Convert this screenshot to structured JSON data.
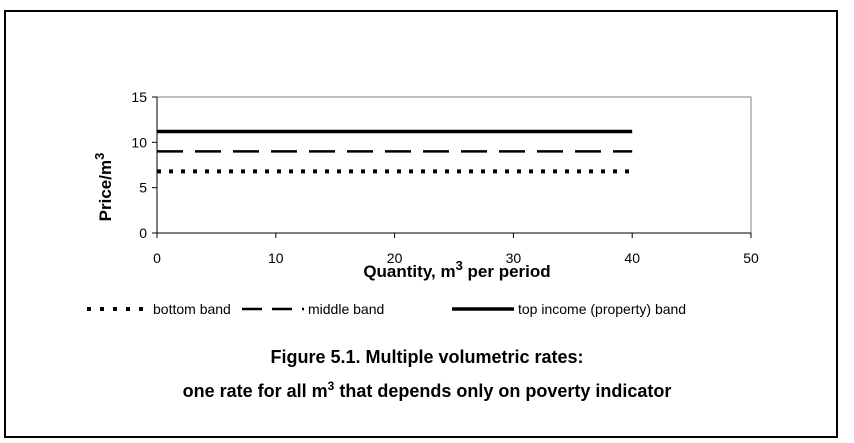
{
  "chart_data": {
    "type": "line",
    "xlabel_prefix": "Quantity, m",
    "xlabel_sup": "3",
    "xlabel_suffix": " per period",
    "ylabel_prefix": "Price/m",
    "ylabel_sup": "3",
    "xlim": [
      0,
      50
    ],
    "ylim": [
      0,
      15
    ],
    "x_ticks": [
      "0",
      "10",
      "20",
      "30",
      "40",
      "50"
    ],
    "y_ticks": [
      "0",
      "5",
      "10",
      "15"
    ],
    "grid": false,
    "legend_position": "bottom",
    "series": [
      {
        "name": "bottom band",
        "x": [
          0,
          40
        ],
        "y": [
          6.8,
          6.8
        ],
        "style": "dotted"
      },
      {
        "name": "middle band",
        "x": [
          0,
          40
        ],
        "y": [
          9.0,
          9.0
        ],
        "style": "dashed"
      },
      {
        "name": "top income (property) band",
        "x": [
          0,
          40
        ],
        "y": [
          11.2,
          11.2
        ],
        "style": "solid"
      }
    ]
  },
  "caption": {
    "line1": "Figure 5.1. Multiple volumetric rates:",
    "line2_prefix": "one rate for all m",
    "line2_sup": "3",
    "line2_suffix": "  that depends only on poverty indicator"
  },
  "colors": {
    "line": "#000000",
    "axis": "#000000",
    "background": "#ffffff"
  }
}
